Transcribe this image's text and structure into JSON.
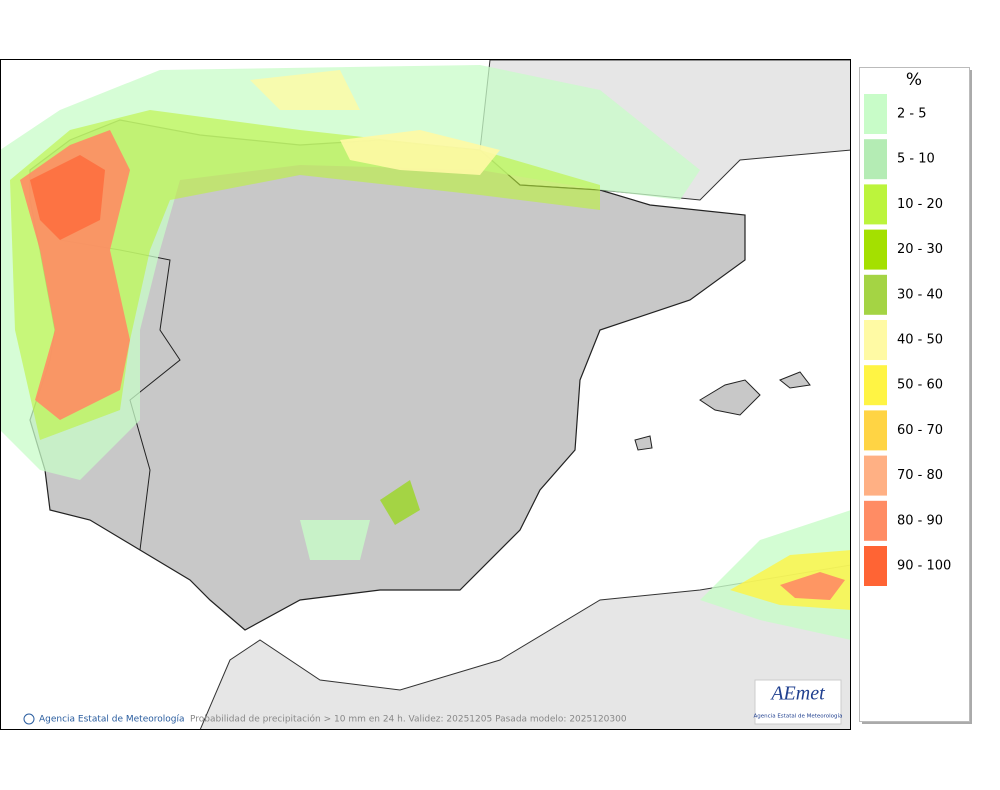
{
  "legend": {
    "title": "%",
    "items": [
      {
        "label": "2 - 5",
        "color": "#c8fcc8"
      },
      {
        "label": "5 - 10",
        "color": "#b4ecb4"
      },
      {
        "label": "10 - 20",
        "color": "#bcf43c"
      },
      {
        "label": "20 - 30",
        "color": "#a4e000"
      },
      {
        "label": "30 - 40",
        "color": "#a4d444"
      },
      {
        "label": "40 - 50",
        "color": "#fffaa4"
      },
      {
        "label": "50 - 60",
        "color": "#fff444"
      },
      {
        "label": "60 - 70",
        "color": "#ffd444"
      },
      {
        "label": "70 - 80",
        "color": "#ffb084"
      },
      {
        "label": "80 - 90",
        "color": "#ff8c64"
      },
      {
        "label": "90 - 100",
        "color": "#ff6434"
      }
    ]
  },
  "footer": {
    "credit": "Agencia Estatal de Meteorología",
    "caption": "Probabilidad de precipitación > 10 mm en 24 h. Validez: 20251205 Pasada modelo: 2025120300"
  },
  "logo": {
    "name": "AEmet",
    "subtitle": "Agencia Estatal de Meteorología"
  }
}
